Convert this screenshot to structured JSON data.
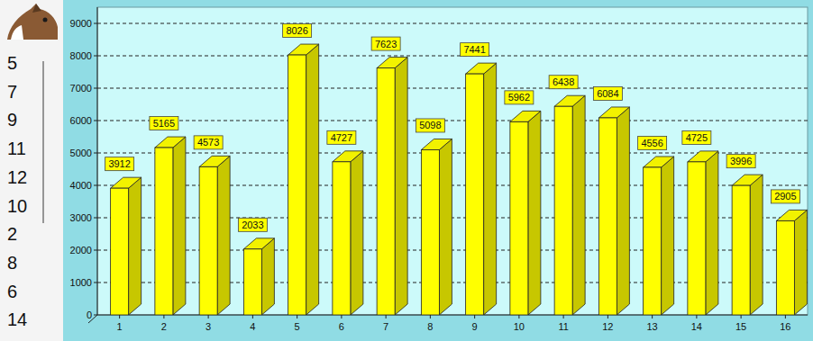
{
  "chart_data": {
    "type": "bar",
    "categories": [
      "1",
      "2",
      "3",
      "4",
      "5",
      "6",
      "7",
      "8",
      "9",
      "10",
      "11",
      "12",
      "13",
      "14",
      "15",
      "16"
    ],
    "values": [
      3912,
      5165,
      4573,
      2033,
      8026,
      4727,
      7623,
      5098,
      7441,
      5962,
      6438,
      6084,
      4556,
      4725,
      3996,
      2905
    ],
    "color": "#ffff00",
    "ylim": [
      0,
      9500
    ],
    "yticks": [
      0,
      1000,
      2000,
      3000,
      4000,
      5000,
      6000,
      7000,
      8000,
      9000
    ],
    "grid": true,
    "data_labels": true
  },
  "ranking": [
    5,
    7,
    9,
    11,
    12,
    10,
    2,
    8,
    6,
    14
  ]
}
